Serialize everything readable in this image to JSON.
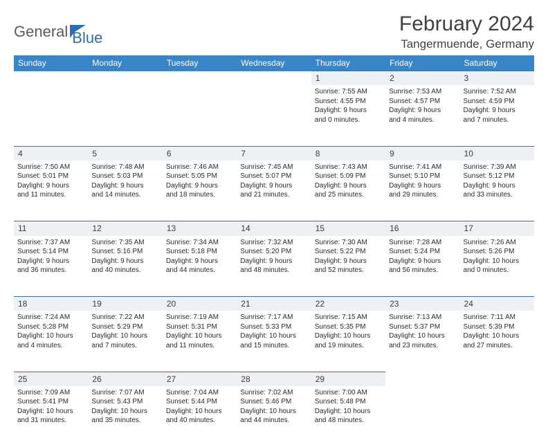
{
  "logo": {
    "part1": "General",
    "part2": "Blue"
  },
  "title": "February 2024",
  "location": "Tangermuende, Germany",
  "colors": {
    "header_bg": "#3985c7",
    "header_text": "#ffffff",
    "daynum_bg": "#eef1f4",
    "daynum_border": "#3d6ea0",
    "body_text": "#2a2a2a",
    "logo_gray": "#5a5a5a",
    "logo_blue": "#2a6db8",
    "page_bg": "#ffffff"
  },
  "day_headers": [
    "Sunday",
    "Monday",
    "Tuesday",
    "Wednesday",
    "Thursday",
    "Friday",
    "Saturday"
  ],
  "weeks": [
    {
      "nums": [
        "",
        "",
        "",
        "",
        "1",
        "2",
        "3"
      ],
      "cells": [
        null,
        null,
        null,
        null,
        {
          "sr": "Sunrise: 7:55 AM",
          "ss": "Sunset: 4:55 PM",
          "d1": "Daylight: 9 hours",
          "d2": "and 0 minutes."
        },
        {
          "sr": "Sunrise: 7:53 AM",
          "ss": "Sunset: 4:57 PM",
          "d1": "Daylight: 9 hours",
          "d2": "and 4 minutes."
        },
        {
          "sr": "Sunrise: 7:52 AM",
          "ss": "Sunset: 4:59 PM",
          "d1": "Daylight: 9 hours",
          "d2": "and 7 minutes."
        }
      ]
    },
    {
      "nums": [
        "4",
        "5",
        "6",
        "7",
        "8",
        "9",
        "10"
      ],
      "cells": [
        {
          "sr": "Sunrise: 7:50 AM",
          "ss": "Sunset: 5:01 PM",
          "d1": "Daylight: 9 hours",
          "d2": "and 11 minutes."
        },
        {
          "sr": "Sunrise: 7:48 AM",
          "ss": "Sunset: 5:03 PM",
          "d1": "Daylight: 9 hours",
          "d2": "and 14 minutes."
        },
        {
          "sr": "Sunrise: 7:46 AM",
          "ss": "Sunset: 5:05 PM",
          "d1": "Daylight: 9 hours",
          "d2": "and 18 minutes."
        },
        {
          "sr": "Sunrise: 7:45 AM",
          "ss": "Sunset: 5:07 PM",
          "d1": "Daylight: 9 hours",
          "d2": "and 21 minutes."
        },
        {
          "sr": "Sunrise: 7:43 AM",
          "ss": "Sunset: 5:09 PM",
          "d1": "Daylight: 9 hours",
          "d2": "and 25 minutes."
        },
        {
          "sr": "Sunrise: 7:41 AM",
          "ss": "Sunset: 5:10 PM",
          "d1": "Daylight: 9 hours",
          "d2": "and 29 minutes."
        },
        {
          "sr": "Sunrise: 7:39 AM",
          "ss": "Sunset: 5:12 PM",
          "d1": "Daylight: 9 hours",
          "d2": "and 33 minutes."
        }
      ]
    },
    {
      "nums": [
        "11",
        "12",
        "13",
        "14",
        "15",
        "16",
        "17"
      ],
      "cells": [
        {
          "sr": "Sunrise: 7:37 AM",
          "ss": "Sunset: 5:14 PM",
          "d1": "Daylight: 9 hours",
          "d2": "and 36 minutes."
        },
        {
          "sr": "Sunrise: 7:35 AM",
          "ss": "Sunset: 5:16 PM",
          "d1": "Daylight: 9 hours",
          "d2": "and 40 minutes."
        },
        {
          "sr": "Sunrise: 7:34 AM",
          "ss": "Sunset: 5:18 PM",
          "d1": "Daylight: 9 hours",
          "d2": "and 44 minutes."
        },
        {
          "sr": "Sunrise: 7:32 AM",
          "ss": "Sunset: 5:20 PM",
          "d1": "Daylight: 9 hours",
          "d2": "and 48 minutes."
        },
        {
          "sr": "Sunrise: 7:30 AM",
          "ss": "Sunset: 5:22 PM",
          "d1": "Daylight: 9 hours",
          "d2": "and 52 minutes."
        },
        {
          "sr": "Sunrise: 7:28 AM",
          "ss": "Sunset: 5:24 PM",
          "d1": "Daylight: 9 hours",
          "d2": "and 56 minutes."
        },
        {
          "sr": "Sunrise: 7:26 AM",
          "ss": "Sunset: 5:26 PM",
          "d1": "Daylight: 10 hours",
          "d2": "and 0 minutes."
        }
      ]
    },
    {
      "nums": [
        "18",
        "19",
        "20",
        "21",
        "22",
        "23",
        "24"
      ],
      "cells": [
        {
          "sr": "Sunrise: 7:24 AM",
          "ss": "Sunset: 5:28 PM",
          "d1": "Daylight: 10 hours",
          "d2": "and 4 minutes."
        },
        {
          "sr": "Sunrise: 7:22 AM",
          "ss": "Sunset: 5:29 PM",
          "d1": "Daylight: 10 hours",
          "d2": "and 7 minutes."
        },
        {
          "sr": "Sunrise: 7:19 AM",
          "ss": "Sunset: 5:31 PM",
          "d1": "Daylight: 10 hours",
          "d2": "and 11 minutes."
        },
        {
          "sr": "Sunrise: 7:17 AM",
          "ss": "Sunset: 5:33 PM",
          "d1": "Daylight: 10 hours",
          "d2": "and 15 minutes."
        },
        {
          "sr": "Sunrise: 7:15 AM",
          "ss": "Sunset: 5:35 PM",
          "d1": "Daylight: 10 hours",
          "d2": "and 19 minutes."
        },
        {
          "sr": "Sunrise: 7:13 AM",
          "ss": "Sunset: 5:37 PM",
          "d1": "Daylight: 10 hours",
          "d2": "and 23 minutes."
        },
        {
          "sr": "Sunrise: 7:11 AM",
          "ss": "Sunset: 5:39 PM",
          "d1": "Daylight: 10 hours",
          "d2": "and 27 minutes."
        }
      ]
    },
    {
      "nums": [
        "25",
        "26",
        "27",
        "28",
        "29",
        "",
        ""
      ],
      "cells": [
        {
          "sr": "Sunrise: 7:09 AM",
          "ss": "Sunset: 5:41 PM",
          "d1": "Daylight: 10 hours",
          "d2": "and 31 minutes."
        },
        {
          "sr": "Sunrise: 7:07 AM",
          "ss": "Sunset: 5:43 PM",
          "d1": "Daylight: 10 hours",
          "d2": "and 35 minutes."
        },
        {
          "sr": "Sunrise: 7:04 AM",
          "ss": "Sunset: 5:44 PM",
          "d1": "Daylight: 10 hours",
          "d2": "and 40 minutes."
        },
        {
          "sr": "Sunrise: 7:02 AM",
          "ss": "Sunset: 5:46 PM",
          "d1": "Daylight: 10 hours",
          "d2": "and 44 minutes."
        },
        {
          "sr": "Sunrise: 7:00 AM",
          "ss": "Sunset: 5:48 PM",
          "d1": "Daylight: 10 hours",
          "d2": "and 48 minutes."
        },
        null,
        null
      ]
    }
  ]
}
